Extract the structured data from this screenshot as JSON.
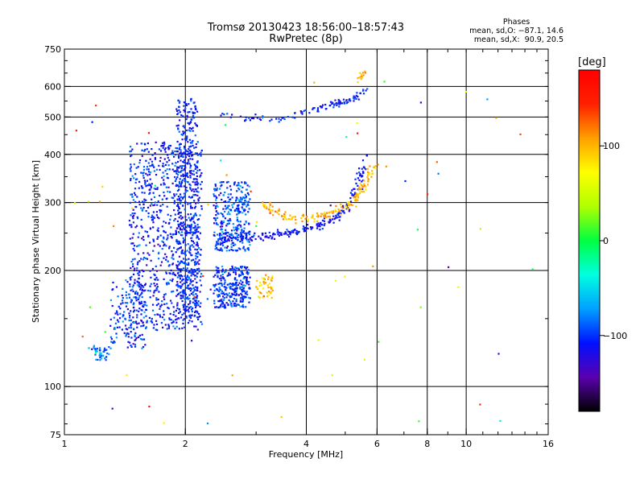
{
  "header": {
    "title_line1": "Tromsø 20130423 18:56:00–18:57:43",
    "title_line2": "RwPretec (8p)"
  },
  "phases": {
    "title": "Phases",
    "line1": "mean, sd,O: −87.1, 14.6",
    "line2": "mean, sd,X:  90.9, 20.5"
  },
  "colorbar": {
    "unit": "[deg]",
    "ticks": [
      "100",
      "0",
      "−100"
    ],
    "tick_values": [
      100,
      0,
      -100
    ],
    "range": [
      -180,
      180
    ],
    "colors": [
      "#000000",
      "#5a00b0",
      "#0010ff",
      "#00a0ff",
      "#00ffe0",
      "#00ff40",
      "#b0ff00",
      "#ffff00",
      "#ffa000",
      "#ff2000",
      "#ff0000"
    ]
  },
  "chart_data": {
    "type": "scatter",
    "title": "Tromsø 20130423 18:56:00–18:57:43",
    "subtitle": "RwPretec (8p)",
    "xlabel": "Frequency [MHz]",
    "ylabel": "Stationary phase Virtual Height [km]",
    "xscale": "log",
    "yscale": "log",
    "xlim": [
      1,
      16
    ],
    "ylim": [
      75,
      750
    ],
    "x_ticks": [
      1,
      2,
      4,
      6,
      8,
      10,
      16
    ],
    "y_ticks": [
      75,
      100,
      200,
      300,
      400,
      500,
      600,
      750
    ],
    "x_gridlines": [
      2,
      4,
      6,
      8,
      10
    ],
    "y_gridlines": [
      100,
      200,
      300,
      400,
      500,
      600
    ],
    "color_variable": "phase [deg]",
    "clusters": [
      {
        "fmin": 1.45,
        "fmax": 2.2,
        "hmin": 140,
        "hmax": 430,
        "count": 900,
        "phase": -105,
        "spread": 15
      },
      {
        "fmin": 1.9,
        "fmax": 2.15,
        "hmin": 150,
        "hmax": 560,
        "count": 450,
        "phase": -105,
        "spread": 12
      },
      {
        "fmin": 1.3,
        "fmax": 1.6,
        "hmin": 125,
        "hmax": 190,
        "count": 150,
        "phase": -100,
        "spread": 18
      },
      {
        "fmin": 1.15,
        "fmax": 1.3,
        "hmin": 117,
        "hmax": 128,
        "count": 40,
        "phase": -80,
        "spread": 15
      },
      {
        "fmin": 2.35,
        "fmax": 2.9,
        "hmin": 160,
        "hmax": 205,
        "count": 280,
        "phase": -100,
        "spread": 15
      },
      {
        "fmin": 2.35,
        "fmax": 2.9,
        "hmin": 225,
        "hmax": 340,
        "count": 320,
        "phase": -95,
        "spread": 18
      },
      {
        "fmin": 3.0,
        "fmax": 3.3,
        "hmin": 170,
        "hmax": 195,
        "count": 45,
        "phase": 95,
        "spread": 20
      }
    ],
    "traces": [
      {
        "name_hint": "O-mode F trace",
        "points": [
          [
            2.45,
            240
          ],
          [
            2.8,
            245
          ],
          [
            3.1,
            243
          ],
          [
            3.5,
            248
          ],
          [
            3.9,
            255
          ],
          [
            4.3,
            262
          ],
          [
            4.7,
            272
          ],
          [
            5.1,
            295
          ],
          [
            5.4,
            340
          ],
          [
            5.6,
            400
          ]
        ],
        "count": 220,
        "phase": -110,
        "spread": 10,
        "jitter": 0.012
      },
      {
        "name_hint": "X-mode F trace",
        "points": [
          [
            3.1,
            300
          ],
          [
            3.4,
            280
          ],
          [
            3.8,
            270
          ],
          [
            4.3,
            275
          ],
          [
            4.8,
            285
          ],
          [
            5.3,
            305
          ],
          [
            5.7,
            345
          ],
          [
            5.9,
            380
          ]
        ],
        "count": 160,
        "phase": 100,
        "spread": 14,
        "jitter": 0.014
      },
      {
        "name_hint": "multi-hop upper trace",
        "points": [
          [
            2.4,
            510
          ],
          [
            2.9,
            495
          ],
          [
            3.4,
            495
          ],
          [
            3.9,
            510
          ],
          [
            4.4,
            530
          ],
          [
            4.9,
            545
          ],
          [
            5.3,
            560
          ],
          [
            5.6,
            590
          ]
        ],
        "count": 110,
        "phase": -105,
        "spread": 12,
        "jitter": 0.01
      },
      {
        "name_hint": "top echo",
        "points": [
          [
            5.4,
            630
          ],
          [
            5.6,
            650
          ]
        ],
        "count": 14,
        "phase": 95,
        "spread": 15,
        "jitter": 0.01
      }
    ],
    "noise": {
      "count": 70,
      "xlim": [
        1.05,
        15
      ],
      "ylim": [
        80,
        700
      ]
    }
  }
}
